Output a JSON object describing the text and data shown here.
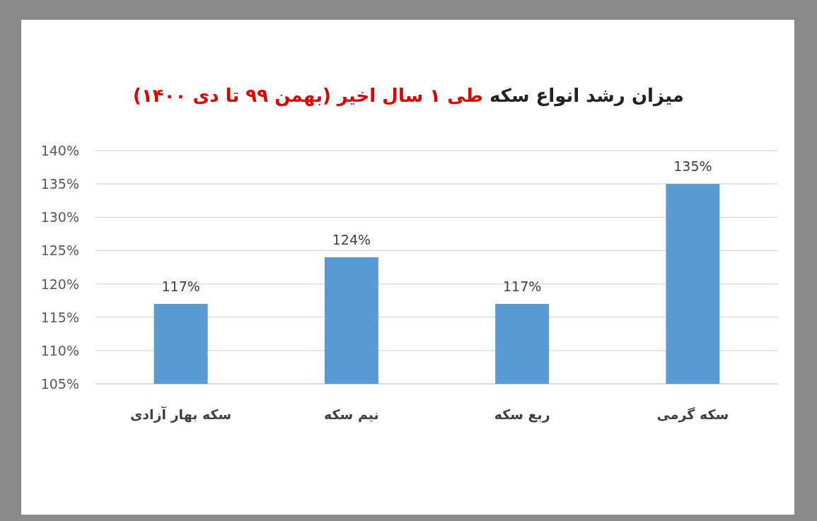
{
  "chart_data": {
    "type": "bar",
    "title": "میزان رشد انواع سکه",
    "subtitle": "طی ۱ سال اخیر (بهمن ۹۹ تا دی ۱۴۰۰)",
    "categories": [
      "سکه بهار آزادی",
      "نیم سکه",
      "ربع سکه",
      "سکه گرمی"
    ],
    "values": [
      117,
      124,
      117,
      135
    ],
    "value_labels": [
      "117%",
      "124%",
      "117%",
      "135%"
    ],
    "color": "#5b9bd5",
    "ylim": [
      105,
      140
    ],
    "yticks": [
      {
        "value": 105,
        "label": "105%"
      },
      {
        "value": 110,
        "label": "110%"
      },
      {
        "value": 115,
        "label": "115%"
      },
      {
        "value": 120,
        "label": "120%"
      },
      {
        "value": 125,
        "label": "125%"
      },
      {
        "value": 130,
        "label": "130%"
      },
      {
        "value": 135,
        "label": "135%"
      },
      {
        "value": 140,
        "label": "140%"
      }
    ],
    "grid": "y"
  }
}
